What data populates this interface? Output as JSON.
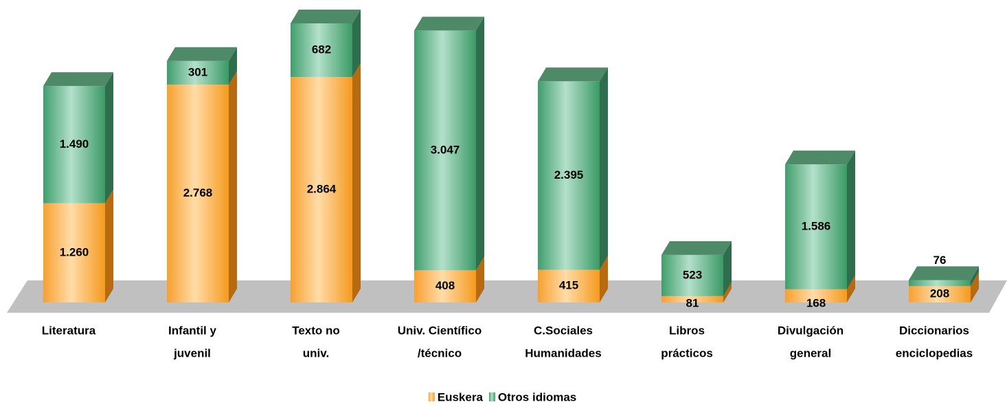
{
  "chart_data": {
    "type": "bar",
    "stacked": true,
    "categories": [
      [
        "Literatura"
      ],
      [
        "Infantil y",
        "juvenil"
      ],
      [
        "Texto no",
        "univ."
      ],
      [
        "Univ. Científico",
        "/técnico"
      ],
      [
        "C.Sociales",
        "Humanidades"
      ],
      [
        "Libros",
        "prácticos"
      ],
      [
        "Divulgación",
        "general"
      ],
      [
        "Diccionarios",
        "enciclopedias"
      ]
    ],
    "series": [
      {
        "name": "Euskera",
        "color": "#f7a030",
        "values": [
          1260,
          2768,
          2864,
          408,
          415,
          81,
          168,
          208
        ],
        "value_labels": [
          "1.260",
          "2.768",
          "2.864",
          "408",
          "415",
          "81",
          "168",
          "208"
        ]
      },
      {
        "name": "Otros idiomas",
        "color": "#3f9e6c",
        "values": [
          1490,
          301,
          682,
          3047,
          2395,
          523,
          1586,
          76
        ],
        "value_labels": [
          "1.490",
          "301",
          "682",
          "3.047",
          "2.395",
          "523",
          "1.586",
          "76"
        ]
      }
    ],
    "legend": "bottom"
  }
}
